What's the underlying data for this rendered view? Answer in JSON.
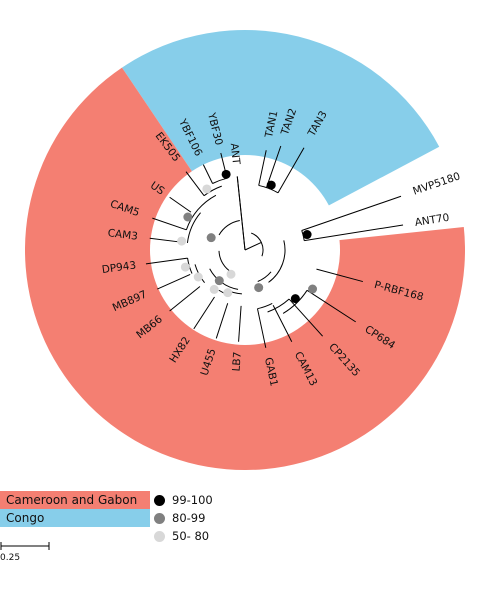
{
  "colors": {
    "cameroon_gabon": "#f47f72",
    "congo": "#87ceea",
    "branch": "#000000"
  },
  "legend": {
    "regions": [
      {
        "label": "Cameroon and Gabon",
        "color": "#f47f72"
      },
      {
        "label": "Congo",
        "color": "#87ceea"
      }
    ],
    "bootstrap": [
      {
        "label": "99-100",
        "color": "#000000"
      },
      {
        "label": "80-99",
        "color": "#808080"
      },
      {
        "label": "50- 80",
        "color": "#d8d8d8"
      }
    ]
  },
  "scale_bar": {
    "label": "0.25"
  },
  "taxa": [
    "YBF30",
    "YBF106",
    "EK505",
    "US",
    "CAM5",
    "CAM3",
    "DP943",
    "MB897",
    "MB66",
    "HX82",
    "U455",
    "LB7",
    "GAB1",
    "CAM13",
    "CP2135",
    "CP684",
    "P-RBF168",
    "ANT70",
    "MVP5180",
    "TAN3",
    "TAN2",
    "TAN1",
    "ANT"
  ]
}
